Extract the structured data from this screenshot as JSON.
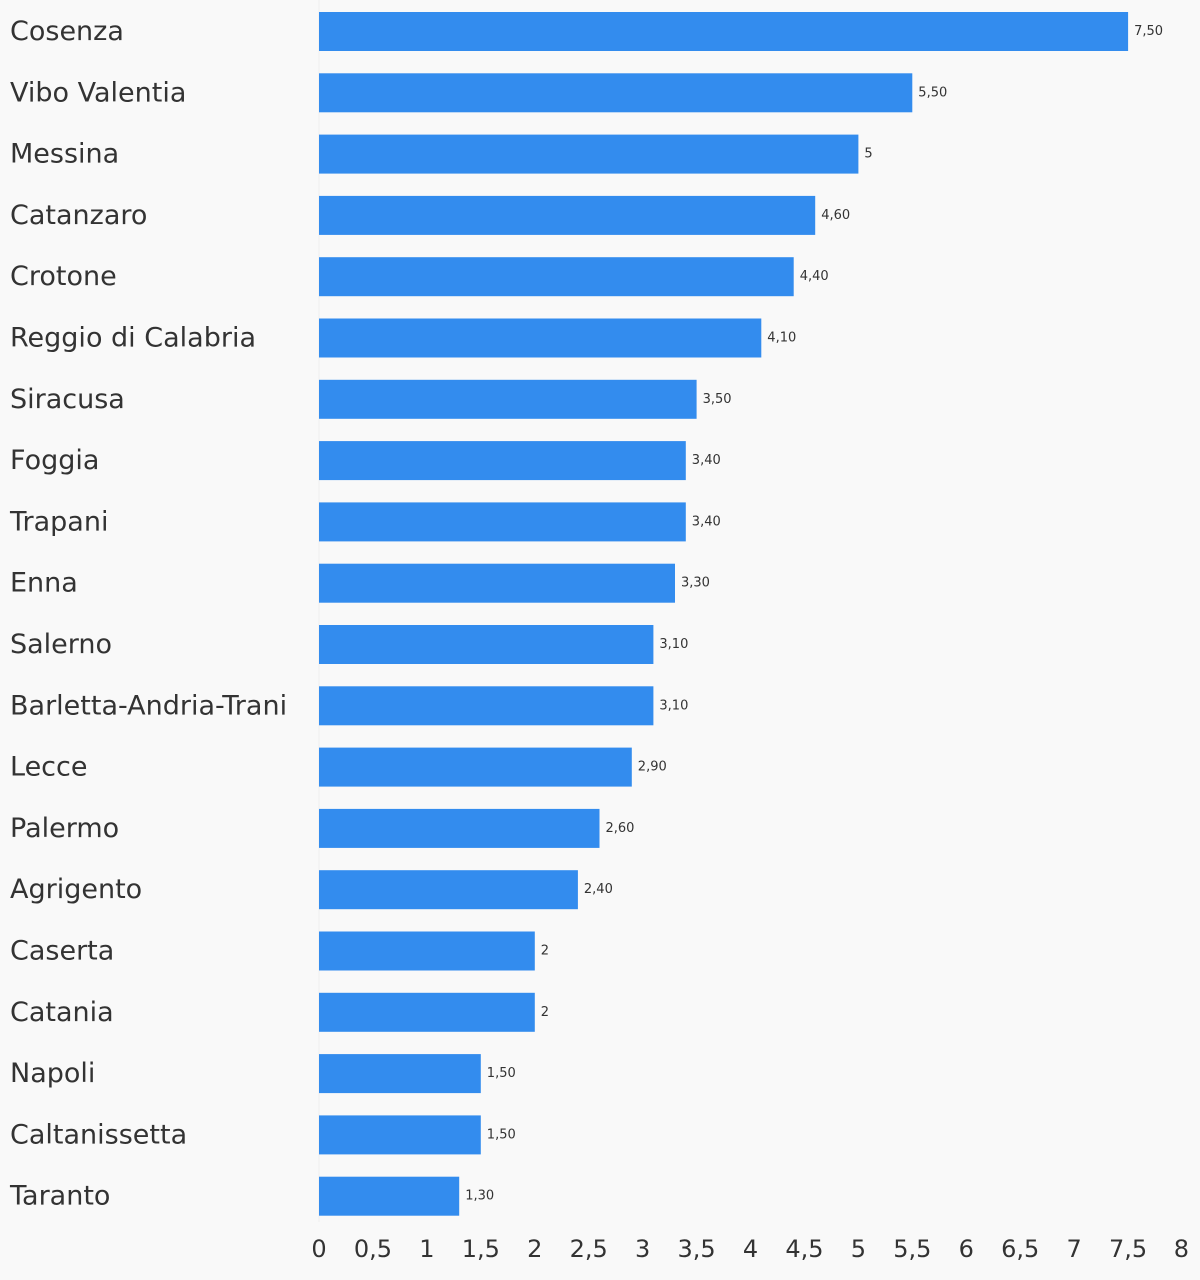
{
  "chart_data": {
    "type": "bar",
    "orientation": "horizontal",
    "categories": [
      "Cosenza",
      "Vibo Valentia",
      "Messina",
      "Catanzaro",
      "Crotone",
      "Reggio di Calabria",
      "Siracusa",
      "Foggia",
      "Trapani",
      "Enna",
      "Salerno",
      "Barletta-Andria-Trani",
      "Lecce",
      "Palermo",
      "Agrigento",
      "Caserta",
      "Catania",
      "Napoli",
      "Caltanissetta",
      "Taranto"
    ],
    "values": [
      7.5,
      5.5,
      5,
      4.6,
      4.4,
      4.1,
      3.5,
      3.4,
      3.4,
      3.3,
      3.1,
      3.1,
      2.9,
      2.6,
      2.4,
      2,
      2,
      1.5,
      1.5,
      1.3
    ],
    "value_labels": [
      "7,50",
      "5,50",
      "5",
      "4,60",
      "4,40",
      "4,10",
      "3,50",
      "3,40",
      "3,40",
      "3,30",
      "3,10",
      "3,10",
      "2,90",
      "2,60",
      "2,40",
      "2",
      "2",
      "1,50",
      "1,50",
      "1,30"
    ],
    "xlim": [
      0,
      8
    ],
    "x_ticks": [
      0,
      0.5,
      1,
      1.5,
      2,
      2.5,
      3,
      3.5,
      4,
      4.5,
      5,
      5.5,
      6,
      6.5,
      7,
      7.5,
      8
    ],
    "x_tick_labels": [
      "0",
      "0,5",
      "1",
      "1,5",
      "2",
      "2,5",
      "3",
      "3,5",
      "4",
      "4,5",
      "5",
      "5,5",
      "6",
      "6,5",
      "7",
      "7,5",
      "8"
    ],
    "title": "",
    "xlabel": "",
    "ylabel": "",
    "grid": false,
    "legend": "none",
    "colors": {
      "bar": "#338cee",
      "text": "#333333",
      "background": "#f9f9f9"
    }
  }
}
